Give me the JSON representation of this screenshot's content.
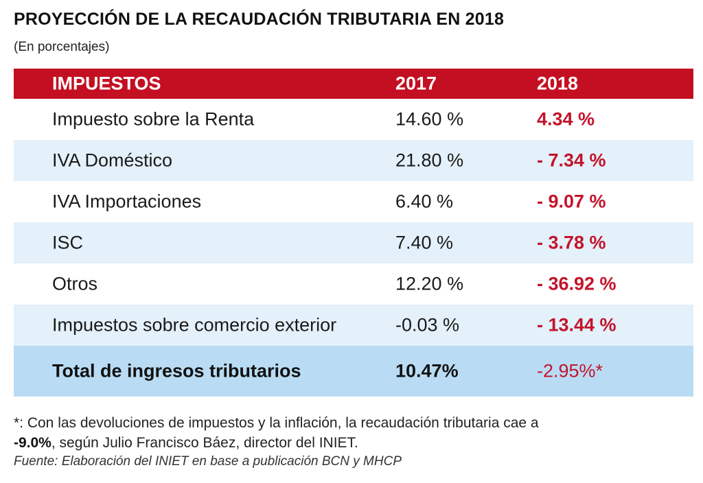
{
  "title": "PROYECCIÓN DE LA RECAUDACIÓN TRIBUTARIA EN  2018",
  "subtitle": "(En porcentajes)",
  "chart_data": {
    "type": "table",
    "columns": [
      "IMPUESTOS",
      "2017",
      "2018"
    ],
    "rows": [
      {
        "label": "Impuesto sobre la Renta",
        "v2017": "14.60 %",
        "v2018": "4.34 %"
      },
      {
        "label": "IVA Doméstico",
        "v2017": "21.80 %",
        "v2018": "- 7.34 %"
      },
      {
        "label": "IVA Importaciones",
        "v2017": "6.40 %",
        "v2018": "- 9.07 %"
      },
      {
        "label": "ISC",
        "v2017": "7.40 %",
        "v2018": "- 3.78 %"
      },
      {
        "label": "Otros",
        "v2017": "12.20 %",
        "v2018": "- 36.92 %"
      },
      {
        "label": "Impuestos sobre comercio exterior",
        "v2017": "-0.03 %",
        "v2018": "- 13.44 %"
      }
    ],
    "total": {
      "label": "Total de ingresos tributarios",
      "v2017": "10.47%",
      "v2018": "-2.95%*"
    }
  },
  "note": {
    "text1": "*: Con las devoluciones de impuestos y la inflación, la recaudación tributaria cae a",
    "bold": "-9.0%",
    "text2": ", según Julio Francisco Báez, director del INIET."
  },
  "source": "Fuente: Elaboración del INIET en base a publicación BCN y MHCP",
  "colors": {
    "header": "#c40f22",
    "negative": "#c2142b",
    "alt_row": "#e4f0fa",
    "total_row": "#b9dcf4"
  }
}
